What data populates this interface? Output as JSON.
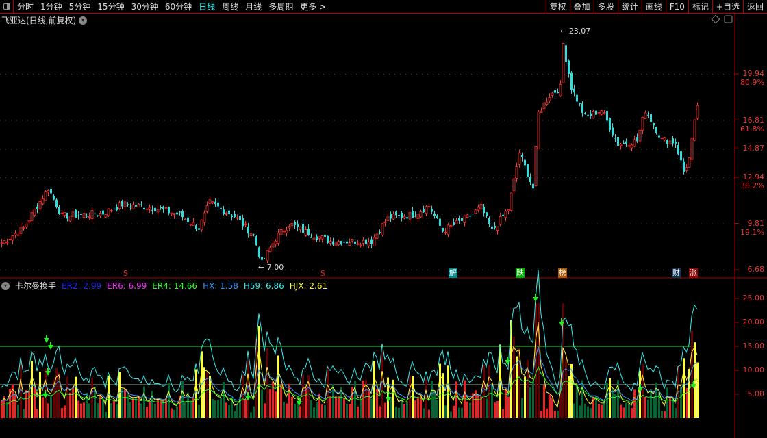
{
  "toolbar": {
    "periods": [
      "分时",
      "1分钟",
      "5分钟",
      "15分钟",
      "30分钟",
      "60分钟",
      "日线",
      "周线",
      "月线",
      "多周期",
      "更多 >"
    ],
    "active": "日线",
    "right_buttons": [
      "复权",
      "叠加",
      "多股",
      "统计",
      "画线",
      "F10",
      "标记",
      "+自选",
      "返回"
    ]
  },
  "chart": {
    "title": "飞亚达(日线,前复权)",
    "high_label": "23.07",
    "low_label": "7.00",
    "price_axis": [
      {
        "price": "19.94",
        "pct": "80.9%"
      },
      {
        "price": "16.81",
        "pct": "61.8%"
      },
      {
        "price": "14.87",
        "pct": ""
      },
      {
        "price": "12.94",
        "pct": "38.2%"
      },
      {
        "price": "9.81",
        "pct": "19.1%"
      },
      {
        "price": "6.68",
        "pct": ""
      }
    ],
    "events": [
      {
        "label": "S",
        "color": "#e22"
      },
      {
        "label": "S",
        "color": "#e22"
      },
      {
        "label": "解",
        "color": "#088"
      },
      {
        "label": "跌",
        "color": "#0a0"
      },
      {
        "label": "榜",
        "color": "#a50"
      },
      {
        "label": "财",
        "color": "#135"
      },
      {
        "label": "涨",
        "color": "#900"
      }
    ],
    "closes": [
      [
        0,
        8.5
      ],
      [
        8,
        9.5
      ],
      [
        17,
        12.2
      ],
      [
        22,
        10.3
      ],
      [
        37,
        10.5
      ],
      [
        44,
        11.1
      ],
      [
        55,
        10.9
      ],
      [
        65,
        10.4
      ],
      [
        72,
        9.5
      ],
      [
        76,
        11.2
      ],
      [
        85,
        10.3
      ],
      [
        92,
        9.0
      ],
      [
        95,
        7.1
      ],
      [
        100,
        8.8
      ],
      [
        105,
        9.8
      ],
      [
        110,
        9.3
      ],
      [
        120,
        8.6
      ],
      [
        135,
        8.6
      ],
      [
        141,
        10.2
      ],
      [
        150,
        10.4
      ],
      [
        156,
        11.0
      ],
      [
        161,
        9.3
      ],
      [
        170,
        10.2
      ],
      [
        175,
        10.9
      ],
      [
        179,
        9.3
      ],
      [
        185,
        10.8
      ],
      [
        189,
        14.6
      ],
      [
        194,
        12.2
      ],
      [
        196,
        17.3
      ],
      [
        200,
        18.5
      ],
      [
        204,
        19.0
      ],
      [
        205,
        22.0
      ],
      [
        208,
        19.0
      ],
      [
        213,
        17.0
      ],
      [
        219,
        17.5
      ],
      [
        225,
        15.2
      ],
      [
        232,
        15.4
      ],
      [
        235,
        17.5
      ],
      [
        241,
        15.5
      ],
      [
        246,
        15.3
      ],
      [
        249,
        13.3
      ],
      [
        251,
        14.2
      ],
      [
        254,
        17.8
      ]
    ],
    "up_color": "#f33",
    "down_color": "#3dd"
  },
  "indicator": {
    "name": "卡尔曼换手",
    "values": [
      {
        "key": "ER2",
        "value": "2.99",
        "color": "#22f"
      },
      {
        "key": "ER6",
        "value": "6.99",
        "color": "#f2f"
      },
      {
        "key": "ER4",
        "value": "14.66",
        "color": "#2f2"
      },
      {
        "key": "HX",
        "value": "1.58",
        "color": "#39f"
      },
      {
        "key": "H59",
        "value": "6.86",
        "color": "#3ee"
      },
      {
        "key": "HJX",
        "value": "2.61",
        "color": "#ff3"
      }
    ],
    "axis": [
      "25.00",
      "20.00",
      "15.00",
      "10.00",
      "5.00"
    ],
    "ref_lines": [
      15,
      7
    ]
  }
}
